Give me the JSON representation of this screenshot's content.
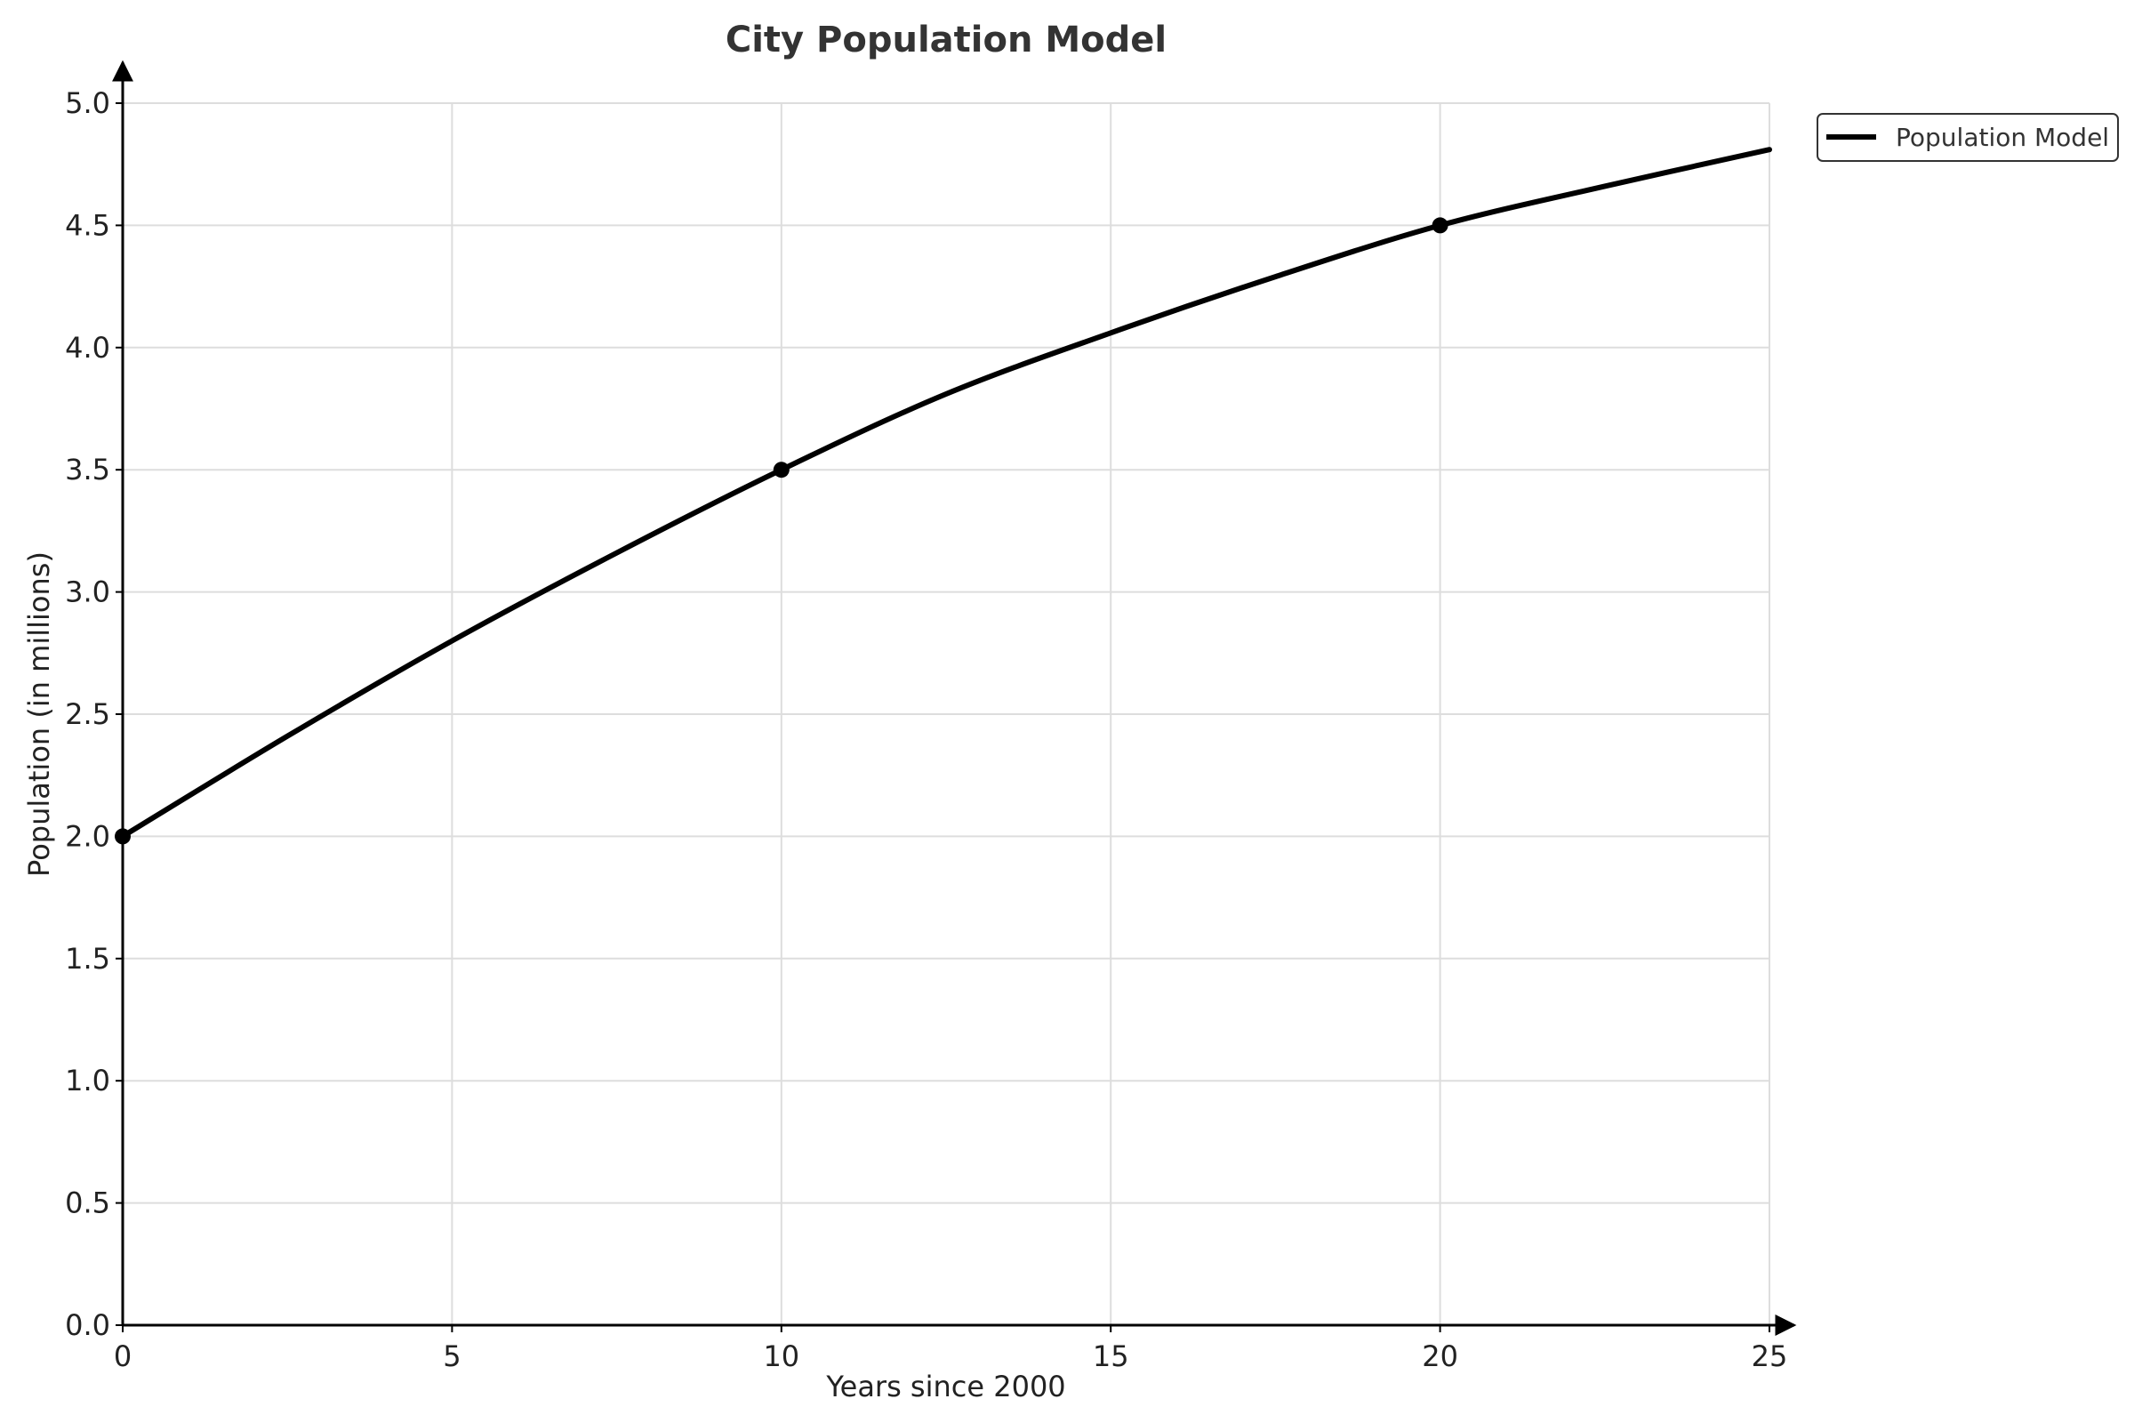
{
  "chart_data": {
    "type": "line",
    "title": "City Population Model",
    "xlabel": "Years since 2000",
    "ylabel": "Population (in millions)",
    "xlim": [
      0,
      25
    ],
    "ylim": [
      0,
      5.0
    ],
    "x_ticks": [
      0,
      5,
      10,
      15,
      20,
      25
    ],
    "x_tick_labels": [
      "0",
      "5",
      "10",
      "15",
      "20",
      "25"
    ],
    "y_ticks": [
      0,
      0.5,
      1.0,
      1.5,
      2.0,
      2.5,
      3.0,
      3.5,
      4.0,
      4.5,
      5.0
    ],
    "y_tick_labels": [
      "0.0",
      "0.5",
      "1.0",
      "1.5",
      "2.0",
      "2.5",
      "3.0",
      "3.5",
      "4.0",
      "4.5",
      "5.0"
    ],
    "grid": true,
    "legend_position": "outside-top-right",
    "series": [
      {
        "name": "Population Model",
        "color": "#000000",
        "x": [
          0,
          2.5,
          5,
          7.5,
          10,
          12.5,
          15,
          17.5,
          20,
          22.5,
          25
        ],
        "y": [
          2.0,
          2.41,
          2.8,
          3.16,
          3.5,
          3.81,
          4.06,
          4.29,
          4.5,
          4.66,
          4.81
        ]
      }
    ],
    "markers": [
      {
        "x": 0,
        "y": 2.0
      },
      {
        "x": 10,
        "y": 3.5
      },
      {
        "x": 20,
        "y": 4.5
      }
    ]
  }
}
